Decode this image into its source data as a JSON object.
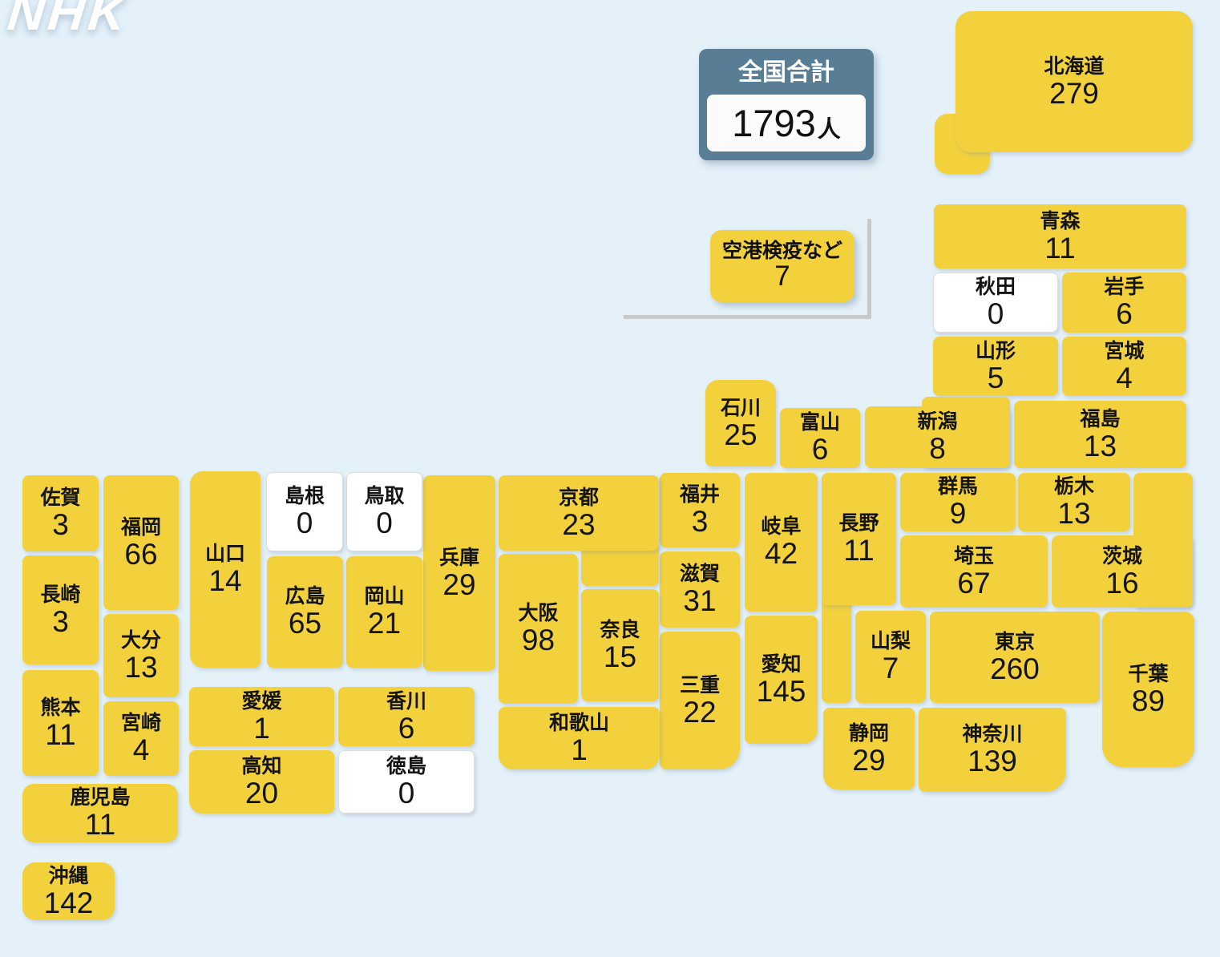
{
  "logo": {
    "text": "NHK"
  },
  "colors": {
    "background": "#e4f1f9",
    "tile": "#f2d13c",
    "tile_zero": "#ffffff",
    "slate": "#5a7d96",
    "bracket": "#c9c9c9",
    "text": "#141414"
  },
  "total_box": {
    "title": "全国合計",
    "value": "1793",
    "unit": "人"
  },
  "quarantine_box": {
    "name": "空港検疫など",
    "value": "7"
  },
  "chart_data": {
    "type": "heatmap",
    "subtype": "tile-cartogram-japan",
    "title": "全国合計 1793人",
    "unit": "人",
    "total": 1793,
    "other_entries": [
      {
        "name": "空港検疫など",
        "value": 7
      }
    ],
    "regions": [
      {
        "name": "北海道",
        "value": "279",
        "rects": [
          [
            1166,
            142,
            69,
            75,
            "16px"
          ],
          [
            1192,
            14,
            296,
            176,
            "20px"
          ]
        ],
        "label": 1
      },
      {
        "name": "青森",
        "value": "11",
        "rects": [
          [
            1165,
            255,
            315,
            80
          ]
        ]
      },
      {
        "name": "秋田",
        "value": "0",
        "zero": true,
        "rects": [
          [
            1164,
            340,
            156,
            75
          ]
        ]
      },
      {
        "name": "岩手",
        "value": "6",
        "rects": [
          [
            1325,
            340,
            155,
            75
          ]
        ]
      },
      {
        "name": "山形",
        "value": "5",
        "rects": [
          [
            1164,
            420,
            156,
            74
          ]
        ]
      },
      {
        "name": "宮城",
        "value": "4",
        "rects": [
          [
            1325,
            420,
            155,
            74
          ]
        ]
      },
      {
        "name": "新潟",
        "value": "8",
        "rects": [
          [
            1150,
            495,
            110,
            89
          ],
          [
            1079,
            507,
            181,
            77
          ]
        ],
        "label": 1
      },
      {
        "name": "富山",
        "value": "6",
        "rects": [
          [
            973,
            509,
            100,
            75
          ]
        ]
      },
      {
        "name": "石川",
        "value": "25",
        "rects": [
          [
            880,
            474,
            88,
            108,
            "16px 16px 8px 8px"
          ]
        ]
      },
      {
        "name": "福島",
        "value": "13",
        "rects": [
          [
            1265,
            500,
            215,
            84
          ]
        ]
      },
      {
        "name": "群馬",
        "value": "9",
        "rects": [
          [
            1123,
            590,
            144,
            73
          ]
        ]
      },
      {
        "name": "栃木",
        "value": "13",
        "rects": [
          [
            1270,
            590,
            140,
            73
          ]
        ]
      },
      {
        "name": "茨城",
        "value": "16",
        "rects": [
          [
            1414,
            590,
            74,
            168
          ],
          [
            1312,
            668,
            176,
            90
          ]
        ],
        "label": 1
      },
      {
        "name": "埼玉",
        "value": "67",
        "rects": [
          [
            1123,
            668,
            184,
            90
          ]
        ]
      },
      {
        "name": "長野",
        "value": "11",
        "rects": [
          [
            1025,
            590,
            37,
            287
          ],
          [
            1025,
            590,
            93,
            165
          ]
        ],
        "label": 1
      },
      {
        "name": "山梨",
        "value": "7",
        "rects": [
          [
            1067,
            762,
            88,
            115
          ]
        ]
      },
      {
        "name": "東京",
        "value": "260",
        "rects": [
          [
            1160,
            763,
            212,
            114
          ]
        ]
      },
      {
        "name": "千葉",
        "value": "89",
        "rects": [
          [
            1375,
            763,
            115,
            194,
            "12px 12px 26px 26px"
          ]
        ]
      },
      {
        "name": "岐阜",
        "value": "42",
        "rects": [
          [
            929,
            590,
            91,
            173
          ]
        ]
      },
      {
        "name": "静岡",
        "value": "29",
        "rects": [
          [
            1027,
            883,
            114,
            102,
            "8px 8px 8px 18px"
          ]
        ]
      },
      {
        "name": "愛知",
        "value": "145",
        "rects": [
          [
            929,
            768,
            91,
            160,
            "8px 8px 18px 8px"
          ]
        ]
      },
      {
        "name": "神奈川",
        "value": "139",
        "rects": [
          [
            1146,
            883,
            184,
            105,
            "8px 8px 26px 8px"
          ]
        ]
      },
      {
        "name": "福井",
        "value": "3",
        "rects": [
          [
            823,
            590,
            100,
            93
          ]
        ]
      },
      {
        "name": "滋賀",
        "value": "31",
        "rects": [
          [
            823,
            688,
            100,
            95
          ]
        ]
      },
      {
        "name": "三重",
        "value": "22",
        "rects": [
          [
            823,
            788,
            100,
            172,
            "8px 8px 26px 8px"
          ]
        ]
      },
      {
        "name": "京都",
        "value": "23",
        "rects": [
          [
            725,
            593,
            97,
            138
          ],
          [
            622,
            593,
            200,
            94
          ]
        ],
        "label": 1
      },
      {
        "name": "大阪",
        "value": "98",
        "rects": [
          [
            622,
            691,
            99,
            187
          ]
        ]
      },
      {
        "name": "奈良",
        "value": "15",
        "rects": [
          [
            725,
            735,
            97,
            140
          ]
        ]
      },
      {
        "name": "和歌山",
        "value": "1",
        "rects": [
          [
            622,
            882,
            201,
            78,
            "8px 8px 18px 18px"
          ]
        ]
      },
      {
        "name": "兵庫",
        "value": "29",
        "rects": [
          [
            528,
            593,
            90,
            244
          ]
        ]
      },
      {
        "name": "鳥取",
        "value": "0",
        "zero": true,
        "rects": [
          [
            432,
            589,
            95,
            99
          ]
        ]
      },
      {
        "name": "島根",
        "value": "0",
        "zero": true,
        "rects": [
          [
            332,
            589,
            96,
            99
          ]
        ]
      },
      {
        "name": "岡山",
        "value": "21",
        "rects": [
          [
            432,
            694,
            95,
            139
          ]
        ]
      },
      {
        "name": "広島",
        "value": "65",
        "rects": [
          [
            333,
            694,
            95,
            139
          ]
        ]
      },
      {
        "name": "山口",
        "value": "14",
        "rects": [
          [
            237,
            588,
            88,
            245,
            "16px 8px 8px 16px"
          ]
        ]
      },
      {
        "name": "徳島",
        "value": "0",
        "zero": true,
        "rects": [
          [
            422,
            936,
            170,
            79
          ]
        ]
      },
      {
        "name": "香川",
        "value": "6",
        "rects": [
          [
            422,
            857,
            170,
            74
          ]
        ]
      },
      {
        "name": "愛媛",
        "value": "1",
        "rects": [
          [
            236,
            857,
            181,
            74
          ]
        ]
      },
      {
        "name": "高知",
        "value": "20",
        "rects": [
          [
            236,
            936,
            181,
            79,
            "8px 8px 8px 16px"
          ]
        ]
      },
      {
        "name": "福岡",
        "value": "66",
        "rects": [
          [
            129,
            593,
            94,
            168
          ]
        ]
      },
      {
        "name": "佐賀",
        "value": "3",
        "rects": [
          [
            28,
            593,
            95,
            95
          ]
        ]
      },
      {
        "name": "長崎",
        "value": "3",
        "rects": [
          [
            28,
            693,
            95,
            136
          ]
        ]
      },
      {
        "name": "熊本",
        "value": "11",
        "rects": [
          [
            28,
            836,
            95,
            132
          ]
        ]
      },
      {
        "name": "大分",
        "value": "13",
        "rects": [
          [
            129,
            766,
            94,
            104
          ]
        ]
      },
      {
        "name": "宮崎",
        "value": "4",
        "rects": [
          [
            129,
            875,
            94,
            93
          ]
        ]
      },
      {
        "name": "鹿児島",
        "value": "11",
        "rects": [
          [
            28,
            978,
            194,
            73,
            "14px"
          ]
        ]
      },
      {
        "name": "沖縄",
        "value": "142",
        "rects": [
          [
            28,
            1076,
            115,
            72,
            "16px"
          ]
        ]
      }
    ]
  }
}
